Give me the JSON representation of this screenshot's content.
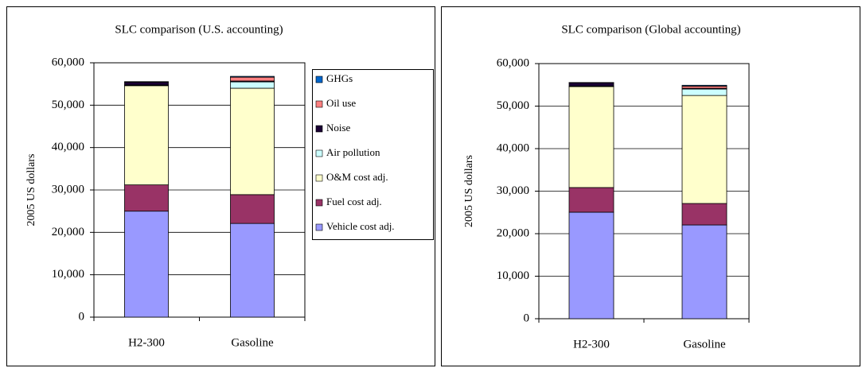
{
  "chart_data": [
    {
      "type": "stacked_bar",
      "title": "SLC comparison (U.S. accounting)",
      "ylabel": "2005 US dollars",
      "categories": [
        "H2-300",
        "Gasoline"
      ],
      "series": [
        {
          "name": "Vehicle cost adj.",
          "color": "#9999ff",
          "values": [
            25000,
            22100
          ]
        },
        {
          "name": "Fuel cost adj.",
          "color": "#993366",
          "values": [
            6200,
            6800
          ]
        },
        {
          "name": "O&M cost adj.",
          "color": "#ffffcc",
          "values": [
            23400,
            25100
          ]
        },
        {
          "name": "Air pollution",
          "color": "#ccffff",
          "values": [
            150,
            1500
          ]
        },
        {
          "name": "Noise",
          "color": "#1a0033",
          "values": [
            700,
            200
          ]
        },
        {
          "name": "Oil use",
          "color": "#ff8080",
          "values": [
            0,
            900
          ]
        },
        {
          "name": "GHGs",
          "color": "#0066cc",
          "values": [
            100,
            200
          ]
        }
      ],
      "ylim": [
        0,
        60000
      ],
      "yticks": [
        0,
        {
          "value": 10000,
          "label": "10,000"
        },
        {
          "value": 20000,
          "label": "20,000"
        },
        {
          "value": 30000,
          "label": "30,000"
        },
        {
          "value": 40000,
          "label": "40,000"
        },
        {
          "value": 50000,
          "label": "50,000"
        },
        {
          "value": 60000,
          "label": "60,000"
        }
      ],
      "grid": true,
      "legend": "right"
    },
    {
      "type": "stacked_bar",
      "title": "SLC comparison (Global accounting)",
      "ylabel": "2005 US dollars",
      "categories": [
        "H2-300",
        "Gasoline"
      ],
      "series": [
        {
          "color": "#9999ff",
          "values": [
            25050,
            22050
          ]
        },
        {
          "color": "#993366",
          "values": [
            5800,
            5050
          ]
        },
        {
          "color": "#ffffcc",
          "values": [
            23750,
            25400
          ]
        },
        {
          "color": "#ccffff",
          "values": [
            100,
            1500
          ]
        },
        {
          "color": "#1a0033",
          "values": [
            800,
            200
          ]
        },
        {
          "color": "#ff8080",
          "values": [
            0,
            500
          ]
        },
        {
          "color": "#0066cc",
          "values": [
            50,
            200
          ]
        }
      ],
      "ylim": [
        0,
        60000
      ],
      "yticks": [
        0,
        {
          "value": 10000,
          "label": "10,000"
        },
        {
          "value": 20000,
          "label": "20,000"
        },
        {
          "value": 30000,
          "label": "30,000"
        },
        {
          "value": 40000,
          "label": "40,000"
        },
        {
          "value": 50000,
          "label": "50,000"
        },
        {
          "value": 60000,
          "label": "60,000"
        }
      ],
      "grid": true
    }
  ]
}
